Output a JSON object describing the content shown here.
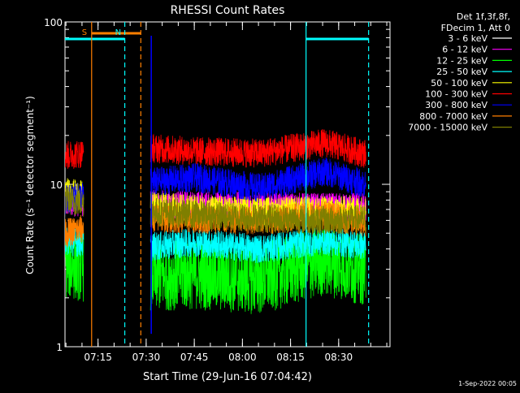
{
  "chart_data": {
    "type": "line",
    "title": "RHESSI Count Rates",
    "xlabel": "Start Time (29-Jun-16 07:04:42)",
    "ylabel": "Count Rate (s⁻¹ detector segment⁻¹)",
    "y_scale": "log",
    "ylim": [
      1,
      100
    ],
    "xlim": [
      "07:04:42",
      "08:46:00"
    ],
    "x_ticks": [
      "07:15",
      "07:30",
      "07:45",
      "08:00",
      "08:15",
      "08:30"
    ],
    "y_ticks": [
      "1",
      "10",
      "100"
    ],
    "legend_header": [
      "Det 1f,3f,8f,",
      "FDecim 1, Att 0"
    ],
    "legend_position": "top-right",
    "timestamp": "1-Sep-2022 00:05",
    "markers": [
      {
        "label": "S",
        "color": "#ff7f00",
        "style": "solid",
        "time": "07:13:00"
      },
      {
        "label": "",
        "color": "#ff7f00",
        "style": "dashed",
        "time": "07:28:20"
      },
      {
        "label": "N",
        "color": "#00ffff",
        "style": "dashed",
        "time": "07:23:20"
      },
      {
        "label": "",
        "color": "#00ffff",
        "style": "solid",
        "time": "08:19:50"
      },
      {
        "label": "",
        "color": "#00ffff",
        "style": "dashed",
        "time": "08:39:20"
      }
    ],
    "series": [
      {
        "name": "3 - 6 keV",
        "color": "#000000",
        "values": [
          5.0,
          4.0,
          3.8,
          3.7,
          5.5,
          4.4
        ]
      },
      {
        "name": "6 - 12 keV",
        "color": "#ff00ff",
        "values": [
          7.8,
          7.6,
          7.4,
          7.3,
          7.2,
          7.3
        ]
      },
      {
        "name": "12 - 25 keV",
        "color": "#00ff00",
        "values": [
          3.3,
          2.7,
          2.8,
          2.6,
          3.4,
          2.7
        ]
      },
      {
        "name": "25 - 50 keV",
        "color": "#00ffff",
        "values": [
          4.5,
          4.0,
          4.4,
          4.0,
          4.5,
          4.0
        ]
      },
      {
        "name": "50 - 100 keV",
        "color": "#ffff00",
        "values": [
          9.0,
          7.5,
          7.0,
          6.8,
          6.9,
          6.9
        ]
      },
      {
        "name": "100 - 300 keV",
        "color": "#ff0000",
        "values": [
          15.0,
          17.0,
          16.0,
          15.5,
          18.0,
          14.0
        ]
      },
      {
        "name": "300 - 800 keV",
        "color": "#0000ff",
        "values": [
          8.0,
          10.0,
          11.0,
          9.5,
          12.0,
          9.0
        ]
      },
      {
        "name": "800 - 7000 keV",
        "color": "#ff7f00",
        "values": [
          5.0,
          6.3,
          6.1,
          6.0,
          6.5,
          5.3
        ]
      },
      {
        "name": "7000 - 15000 keV",
        "color": "#7f7f00",
        "values": [
          8.0,
          7.0,
          6.5,
          6.2,
          6.0,
          6.2
        ]
      }
    ]
  }
}
